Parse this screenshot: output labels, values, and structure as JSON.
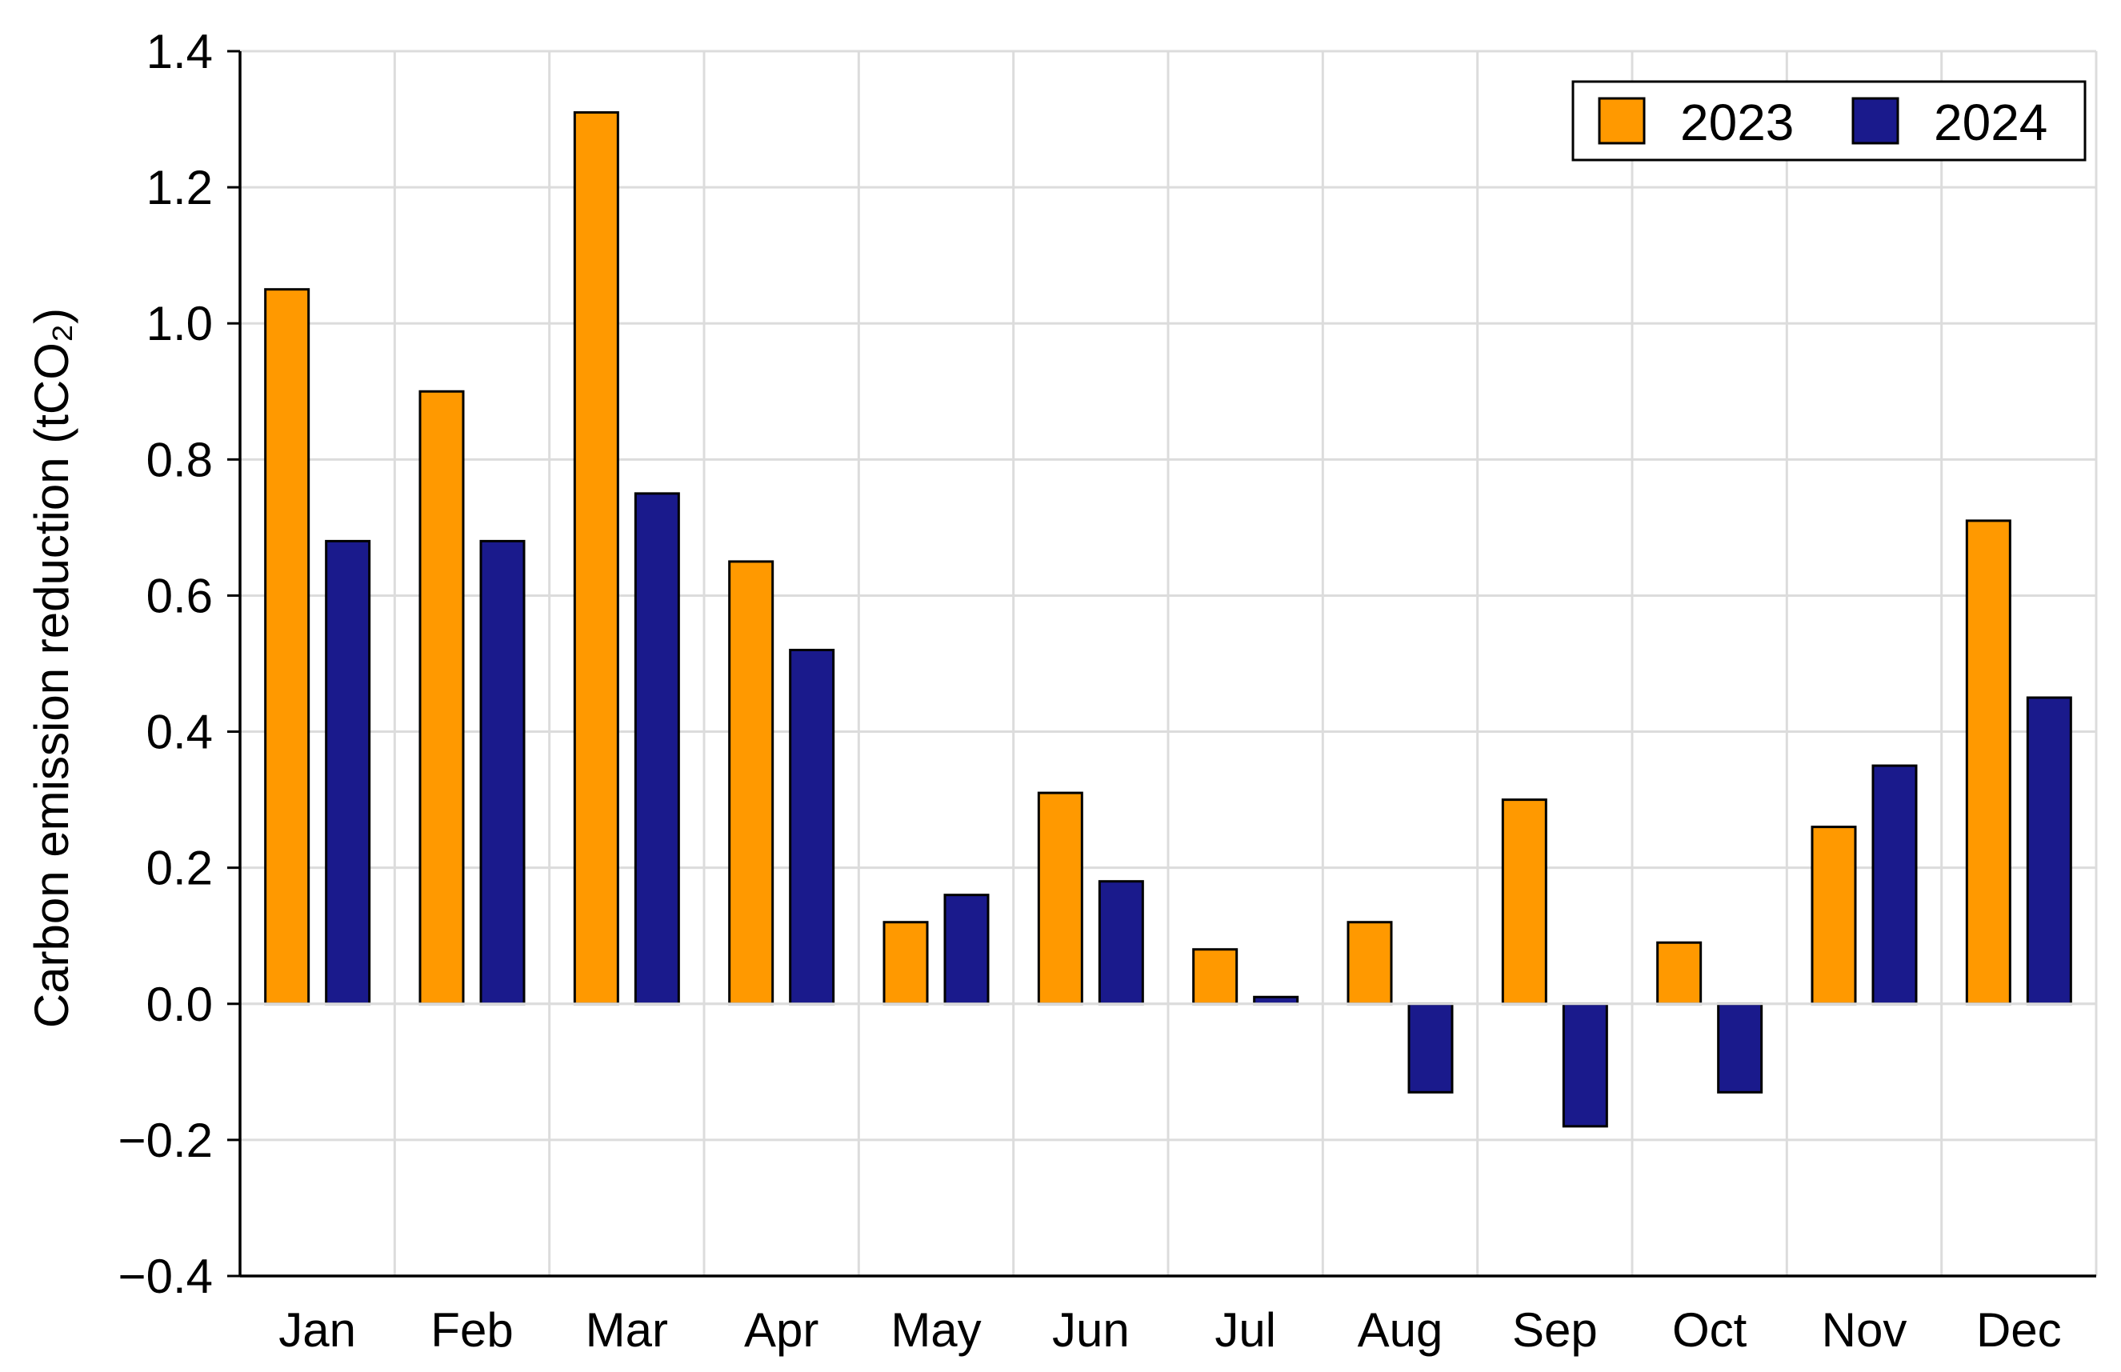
{
  "chart_data": {
    "type": "bar",
    "title": "",
    "xlabel": "",
    "ylabel": "Carbon emission reduction (tCO₂)",
    "ylim": [
      -0.4,
      1.4
    ],
    "yticks": [
      1.4,
      1.2,
      1.0,
      0.8,
      0.6,
      0.4,
      0.2,
      0.0,
      -0.2,
      -0.4
    ],
    "ytick_labels": [
      "1.4",
      "1.2",
      "1.0",
      "0.8",
      "0.6",
      "0.4",
      "0.2",
      "0.0",
      "−0.2",
      "−0.4"
    ],
    "categories": [
      "Jan",
      "Feb",
      "Mar",
      "Apr",
      "May",
      "Jun",
      "Jul",
      "Aug",
      "Sep",
      "Oct",
      "Nov",
      "Dec"
    ],
    "series": [
      {
        "name": "2023",
        "color": "#FF9900",
        "values": [
          1.05,
          0.9,
          1.31,
          0.65,
          0.12,
          0.31,
          0.08,
          0.12,
          0.3,
          0.09,
          0.26,
          0.71
        ]
      },
      {
        "name": "2024",
        "color": "#1A1A8C",
        "values": [
          0.68,
          0.68,
          0.75,
          0.52,
          0.16,
          0.18,
          0.01,
          -0.13,
          -0.18,
          -0.13,
          0.35,
          0.45
        ]
      }
    ],
    "grid": true,
    "legend_position": "top-right"
  }
}
